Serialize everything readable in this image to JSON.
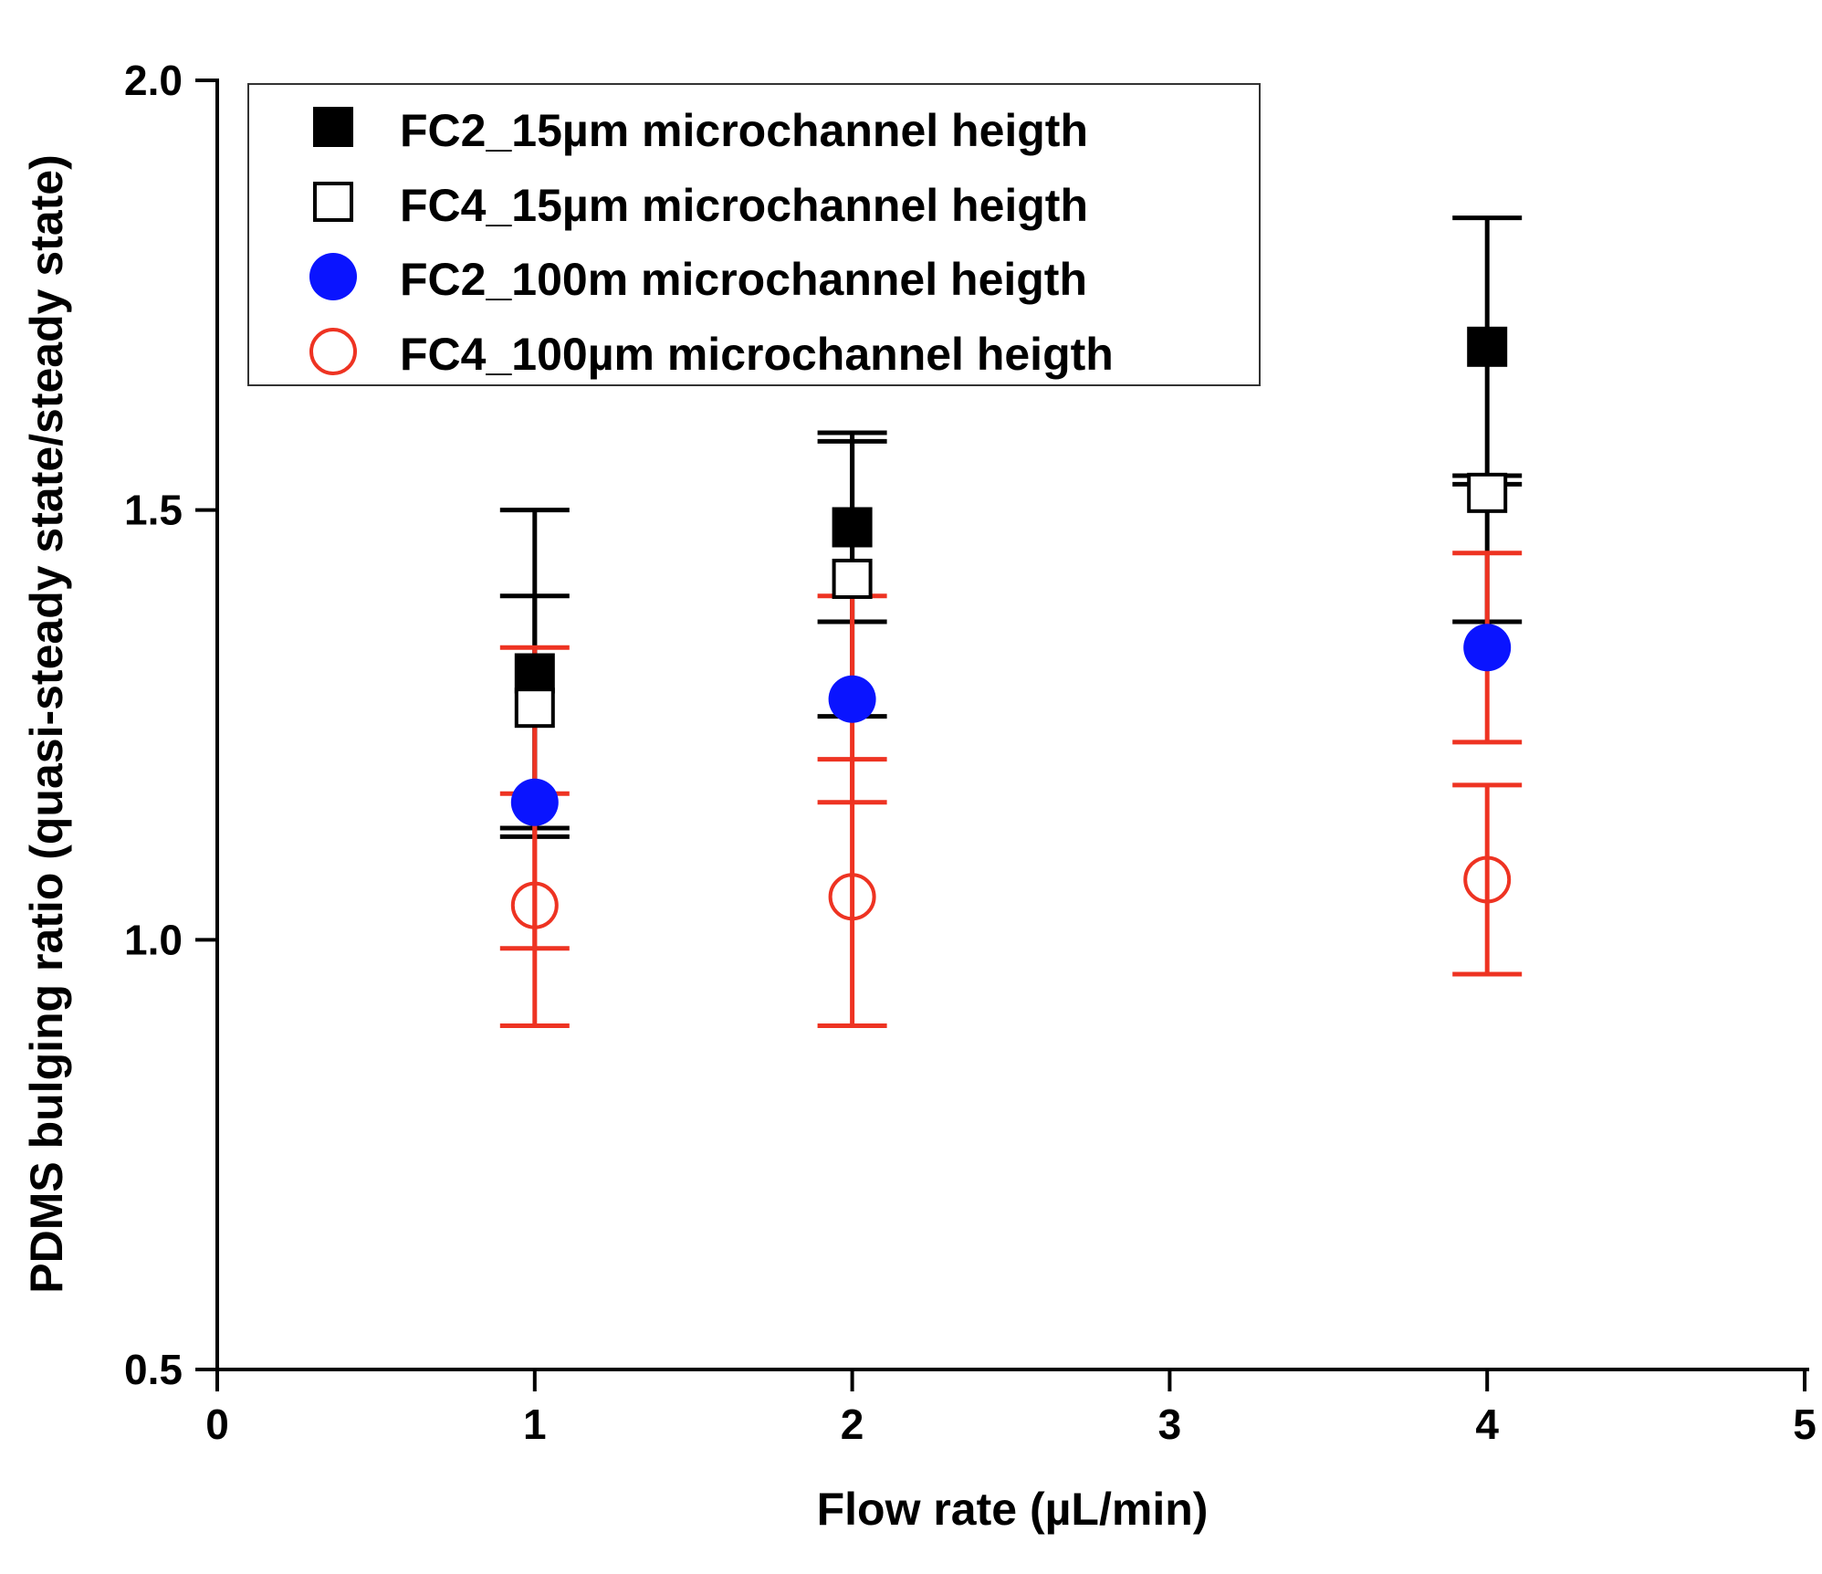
{
  "chart_data": {
    "type": "scatter",
    "title": "",
    "xlabel": "Flow rate (µL/min)",
    "ylabel": "PDMS bulging ratio (quasi-steady state/steady state)",
    "xlim": [
      0,
      5
    ],
    "ylim": [
      0.5,
      2.0
    ],
    "xticks": [
      0,
      1,
      2,
      3,
      4,
      5
    ],
    "xtick_labels": [
      "0",
      "1",
      "2",
      "3",
      "4",
      "5"
    ],
    "yticks": [
      0.5,
      1.0,
      1.5,
      2.0
    ],
    "ytick_labels": [
      "0.5",
      "1.0",
      "1.5",
      "2.0"
    ],
    "grid": false,
    "legend_position": "top-left",
    "series": [
      {
        "name": "FC2_15µm microchannel heigth",
        "marker": "square-filled",
        "color": "#000000",
        "error_color": "#000000",
        "x": [
          1,
          2,
          4
        ],
        "y": [
          1.31,
          1.48,
          1.69
        ],
        "err_low": [
          1.13,
          1.37,
          1.54
        ],
        "err_high": [
          1.5,
          1.59,
          1.84
        ]
      },
      {
        "name": "FC4_15µm microchannel heigth",
        "marker": "square-open",
        "color": "#000000",
        "error_color": "#000000",
        "x": [
          1,
          2,
          4
        ],
        "y": [
          1.27,
          1.42,
          1.52
        ],
        "err_low": [
          1.12,
          1.26,
          1.37
        ],
        "err_high": [
          1.4,
          1.58,
          1.53
        ]
      },
      {
        "name": "FC2_100m microchannel heigth",
        "marker": "circle-filled",
        "color": "#0a14ff",
        "error_color": "#ee3322",
        "x": [
          1,
          2,
          4
        ],
        "y": [
          1.16,
          1.28,
          1.34
        ],
        "err_low": [
          0.99,
          1.16,
          1.23
        ],
        "err_high": [
          1.34,
          1.4,
          1.45
        ]
      },
      {
        "name": "FC4_100µm microchannel heigth",
        "marker": "circle-open",
        "color": "#ee3322",
        "error_color": "#ee3322",
        "x": [
          1,
          2,
          4
        ],
        "y": [
          1.04,
          1.05,
          1.07
        ],
        "err_low": [
          0.9,
          0.9,
          0.96
        ],
        "err_high": [
          1.17,
          1.21,
          1.18
        ]
      }
    ]
  }
}
